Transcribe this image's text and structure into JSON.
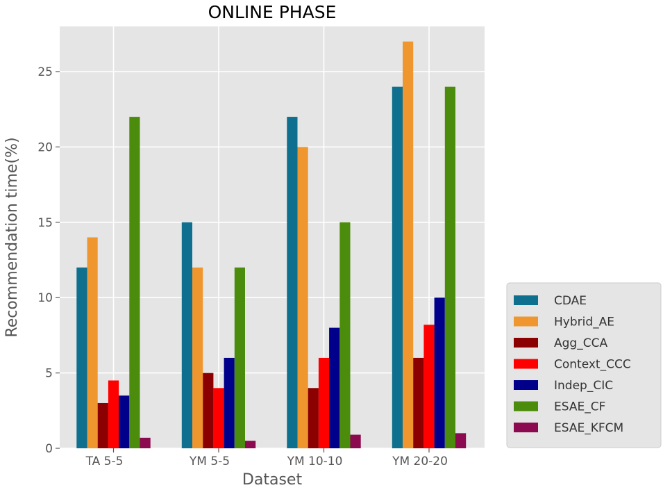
{
  "chart_data": {
    "type": "bar",
    "title": "ONLINE PHASE",
    "xlabel": "Dataset",
    "ylabel": "Recommendation time(%)",
    "categories": [
      "TA 5-5",
      "YM 5-5",
      "YM 10-10",
      "YM 20-20"
    ],
    "yticks": [
      0,
      5,
      10,
      15,
      20,
      25
    ],
    "ylim": [
      0,
      28
    ],
    "grid": true,
    "legend_position": "right",
    "series": [
      {
        "name": "CDAE",
        "color": "#0e6f8e",
        "values": [
          12,
          15,
          22,
          24
        ]
      },
      {
        "name": "Hybrid_AE",
        "color": "#f0962e",
        "values": [
          14,
          12,
          20,
          27
        ]
      },
      {
        "name": "Agg_CCA",
        "color": "#8b0000",
        "values": [
          3,
          5,
          4,
          6
        ]
      },
      {
        "name": "Context_CCC",
        "color": "#ff0000",
        "values": [
          4.5,
          4,
          6,
          8.2
        ]
      },
      {
        "name": "Indep_CIC",
        "color": "#00008b",
        "values": [
          3.5,
          6,
          8,
          10
        ]
      },
      {
        "name": "ESAE_CF",
        "color": "#4c8c0c",
        "values": [
          22,
          12,
          15,
          24
        ]
      },
      {
        "name": "ESAE_KFCM",
        "color": "#8b0a50",
        "values": [
          0.7,
          0.5,
          0.9,
          1.0
        ]
      }
    ]
  }
}
